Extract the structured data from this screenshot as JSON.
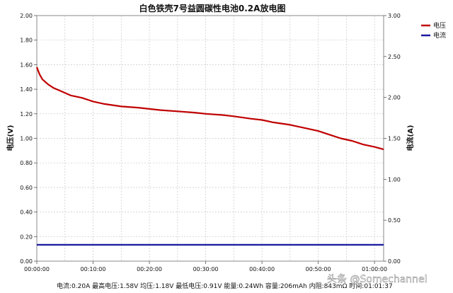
{
  "chart_data": {
    "type": "line",
    "title": "白色铁壳7号益圆碳性电池0.2A放电图",
    "ylabel_left": "电压(V)",
    "ylabel_right": "电流(A)",
    "xlabel": "",
    "x_unit": "h:mm:ss",
    "xlim": [
      "00:00:00",
      "01:01:37"
    ],
    "ylim_left": [
      0.0,
      2.0
    ],
    "ylim_right": [
      0.0,
      3.0
    ],
    "x_ticks": [
      "00:00:00",
      "00:10:00",
      "00:20:00",
      "00:30:00",
      "00:40:00",
      "00:50:00",
      "01:00:00"
    ],
    "y_ticks_left": [
      "0.00",
      "0.20",
      "0.40",
      "0.60",
      "0.80",
      "1.00",
      "1.20",
      "1.40",
      "1.60",
      "1.80",
      "2.00"
    ],
    "y_ticks_right": [
      "0.00",
      "0.50",
      "1.00",
      "1.50",
      "2.00",
      "2.50",
      "3.00"
    ],
    "grid": true,
    "legend_position": "top-right",
    "series": [
      {
        "name": "电压",
        "axis": "left",
        "color": "#c00000",
        "x": [
          "00:00:00",
          "00:00:30",
          "00:01:00",
          "00:02:00",
          "00:03:00",
          "00:04:00",
          "00:05:00",
          "00:06:00",
          "00:08:00",
          "00:10:00",
          "00:12:00",
          "00:15:00",
          "00:18:00",
          "00:20:00",
          "00:22:00",
          "00:25:00",
          "00:28:00",
          "00:30:00",
          "00:33:00",
          "00:35:00",
          "00:38:00",
          "00:40:00",
          "00:42:00",
          "00:45:00",
          "00:48:00",
          "00:50:00",
          "00:52:00",
          "00:54:00",
          "00:56:00",
          "00:58:00",
          "01:00:00",
          "01:01:37"
        ],
        "values": [
          1.58,
          1.52,
          1.48,
          1.44,
          1.41,
          1.39,
          1.37,
          1.35,
          1.33,
          1.3,
          1.28,
          1.26,
          1.25,
          1.24,
          1.23,
          1.22,
          1.21,
          1.2,
          1.19,
          1.18,
          1.16,
          1.15,
          1.13,
          1.11,
          1.08,
          1.06,
          1.03,
          1.0,
          0.98,
          0.95,
          0.93,
          0.91
        ]
      },
      {
        "name": "电流",
        "axis": "right",
        "color": "#1a1aa0",
        "x": [
          "00:00:00",
          "01:01:37"
        ],
        "values": [
          0.2,
          0.2
        ]
      }
    ]
  },
  "footer": {
    "summary": "电流:0.20A 最高电压:1.58V 均压:1.18V 最低电压:0.91V 能量:0.24Wh 容量:206mAh 内阻:843mΩ 时间:01:01:37"
  },
  "watermark": "头条 @Somechannel"
}
